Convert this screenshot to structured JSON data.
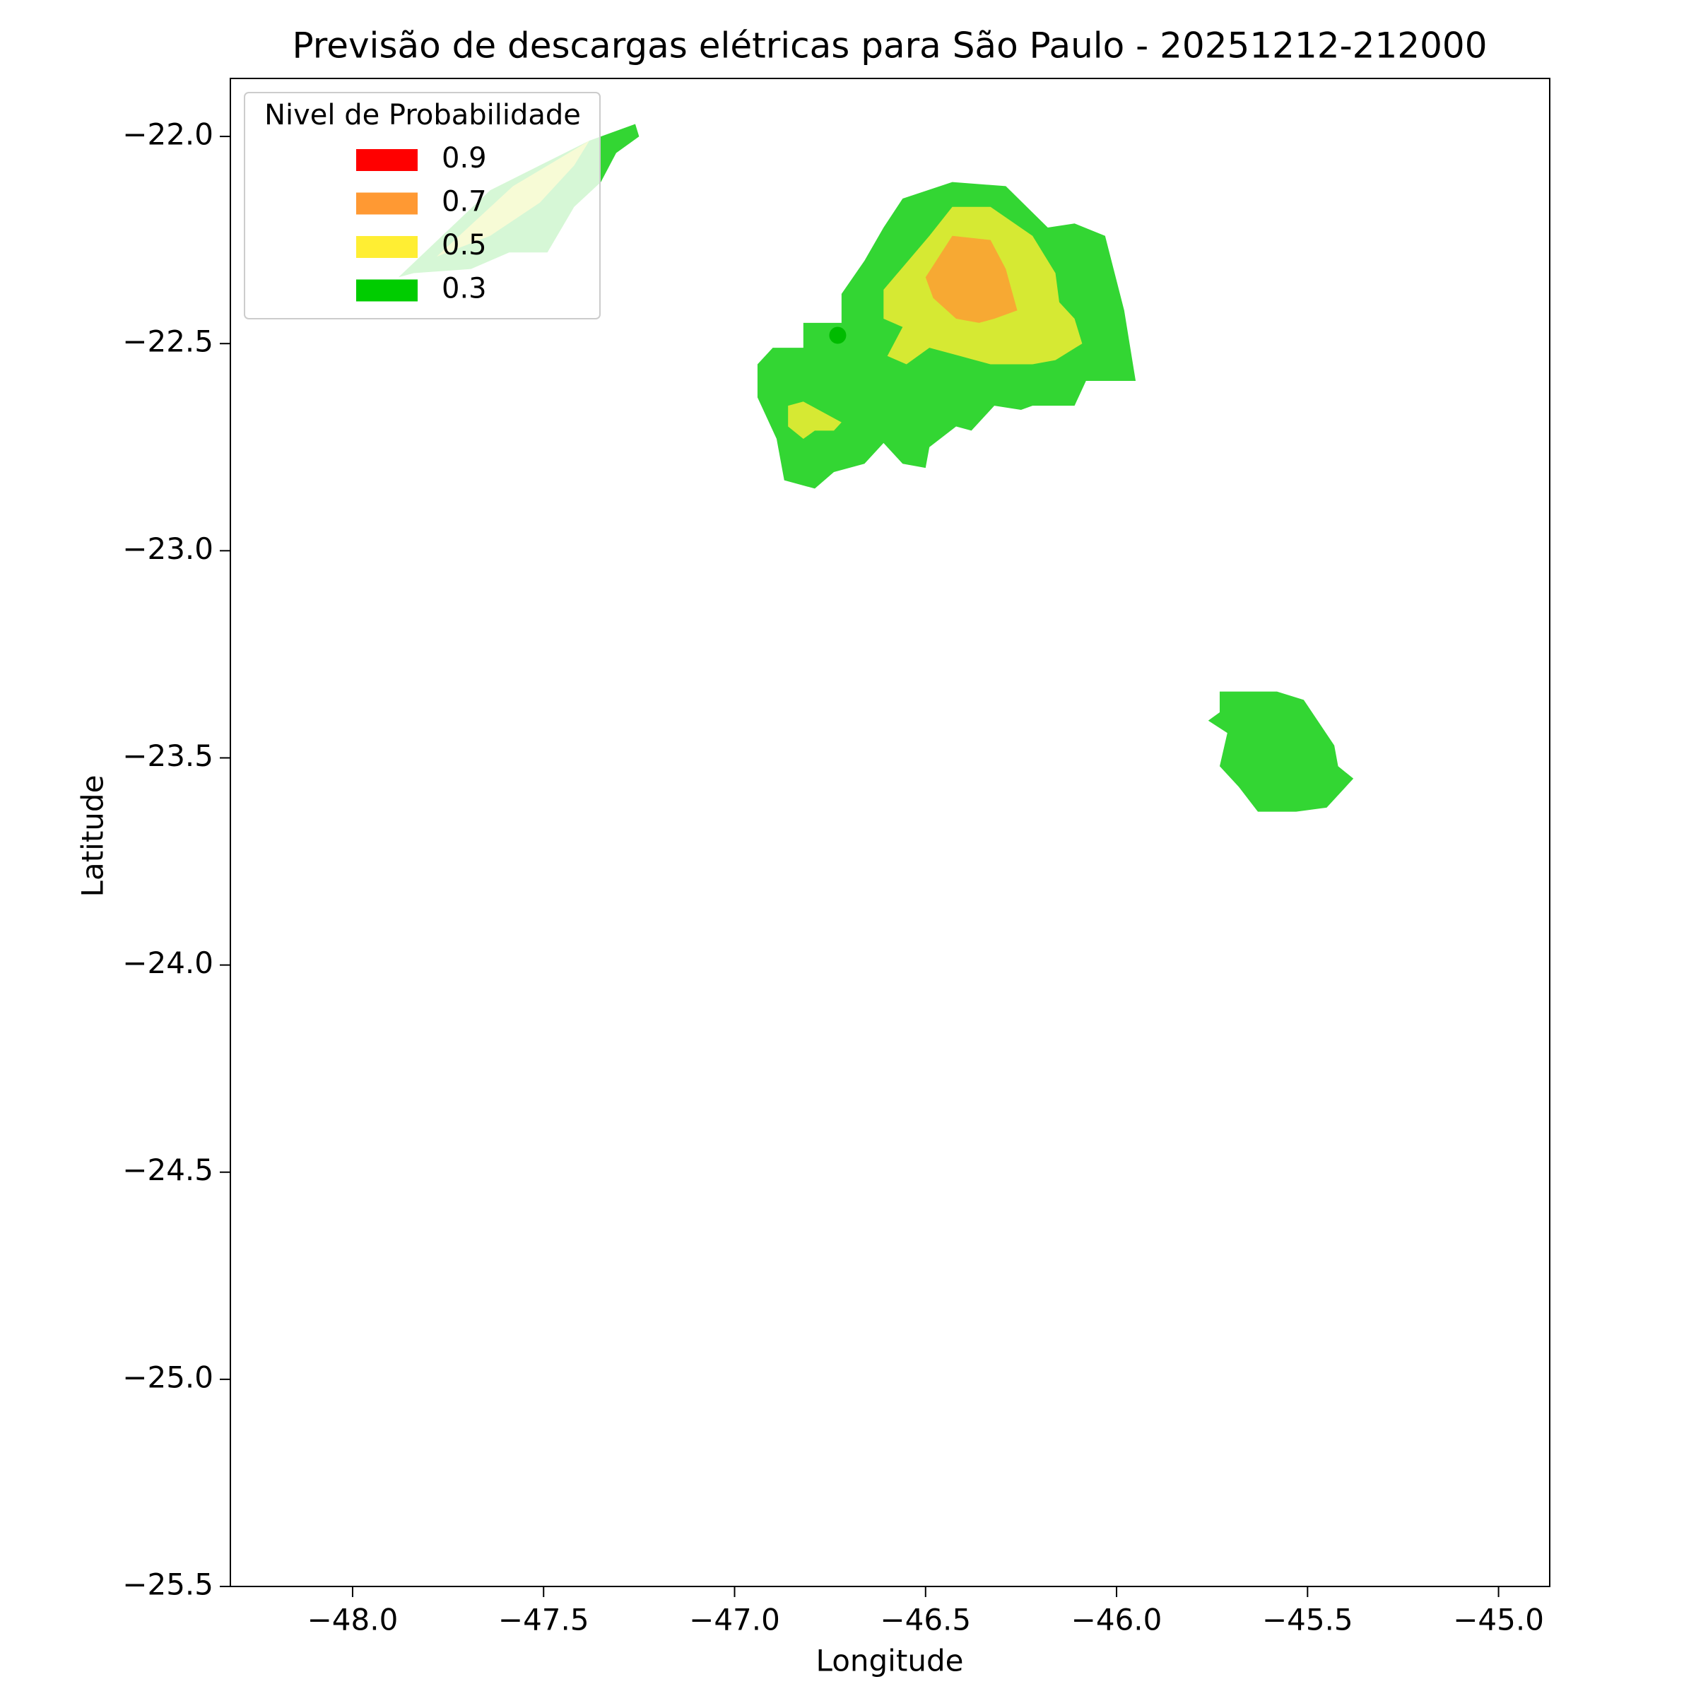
{
  "chart_data": {
    "type": "contour",
    "title": "Previsão de descargas elétricas para São Paulo - 20251212-212000",
    "x_label": "Longitude",
    "y_label": "Latitude",
    "xlim": [
      -48.32,
      -44.866
    ],
    "ylim": [
      -25.5,
      -21.86
    ],
    "xticks": [
      {
        "value": -48,
        "label": "−48.0"
      },
      {
        "value": -47.5,
        "label": "−47.5"
      },
      {
        "value": -47,
        "label": "−47.0"
      },
      {
        "value": -46.5,
        "label": "−46.5"
      },
      {
        "value": -46,
        "label": "−46.0"
      },
      {
        "value": -45.5,
        "label": "−45.5"
      },
      {
        "value": -45,
        "label": "−45.0"
      }
    ],
    "yticks": [
      {
        "value": -22,
        "label": "−22.0"
      },
      {
        "value": -22.5,
        "label": "−22.5"
      },
      {
        "value": -23,
        "label": "−23.0"
      },
      {
        "value": -23.5,
        "label": "−23.5"
      },
      {
        "value": -24,
        "label": "−24.0"
      },
      {
        "value": -24.5,
        "label": "−24.5"
      },
      {
        "value": -25,
        "label": "−25.0"
      },
      {
        "value": -25.5,
        "label": "−25.5"
      }
    ],
    "legend": {
      "title": "Nivel de Probabilidade",
      "position": "upper left",
      "levels": [
        0.9,
        0.7,
        0.5,
        0.3
      ],
      "colors": [
        "#ff0000",
        "#ff9933",
        "#ffee33",
        "#00cc00"
      ]
    },
    "fill_opacity": 0.8,
    "regions": [
      {
        "level": 0.3,
        "lon": [
          -46.94,
          -46.9,
          -46.82,
          -46.82,
          -46.72,
          -46.72,
          -46.66,
          -46.61,
          -46.56,
          -46.43,
          -46.29,
          -46.18,
          -46.11,
          -46.03,
          -45.98,
          -45.95,
          -46.08,
          -46.11,
          -46.22,
          -46.25,
          -46.32,
          -46.38,
          -46.42,
          -46.49,
          -46.5,
          -46.56,
          -46.61,
          -46.66,
          -46.74,
          -46.79,
          -46.87,
          -46.89,
          -46.94
        ],
        "lat": [
          -22.55,
          -22.51,
          -22.51,
          -22.45,
          -22.45,
          -22.38,
          -22.3,
          -22.22,
          -22.15,
          -22.11,
          -22.12,
          -22.22,
          -22.21,
          -22.24,
          -22.42,
          -22.59,
          -22.59,
          -22.65,
          -22.65,
          -22.66,
          -22.65,
          -22.71,
          -22.7,
          -22.75,
          -22.8,
          -22.79,
          -22.74,
          -22.79,
          -22.81,
          -22.85,
          -22.83,
          -22.73,
          -22.63
        ]
      },
      {
        "level": 0.3,
        "lon": [
          -45.73,
          -45.58,
          -45.51,
          -45.43,
          -45.42,
          -45.38,
          -45.45,
          -45.53,
          -45.63,
          -45.68,
          -45.73,
          -45.71,
          -45.76,
          -45.73
        ],
        "lat": [
          -23.34,
          -23.34,
          -23.36,
          -23.47,
          -23.52,
          -23.55,
          -23.62,
          -23.63,
          -23.63,
          -23.57,
          -23.52,
          -23.44,
          -23.41,
          -23.39
        ]
      },
      {
        "level": 0.3,
        "lon": [
          -47.88,
          -47.64,
          -47.38,
          -47.26,
          -47.25,
          -47.31,
          -47.35,
          -47.42,
          -47.49,
          -47.59,
          -47.69,
          -47.84
        ],
        "lat": [
          -22.34,
          -22.13,
          -22.01,
          -21.97,
          -22.0,
          -22.04,
          -22.11,
          -22.17,
          -22.28,
          -22.28,
          -22.32,
          -22.33
        ]
      },
      {
        "level": 0.5,
        "lon": [
          -46.61,
          -46.49,
          -46.43,
          -46.33,
          -46.22,
          -46.16,
          -46.15,
          -46.11,
          -46.09,
          -46.16,
          -46.22,
          -46.33,
          -46.41,
          -46.49,
          -46.55,
          -46.6,
          -46.56,
          -46.61
        ],
        "lat": [
          -22.37,
          -22.24,
          -22.17,
          -22.17,
          -22.24,
          -22.33,
          -22.4,
          -22.44,
          -22.5,
          -22.54,
          -22.55,
          -22.55,
          -22.53,
          -22.51,
          -22.55,
          -22.53,
          -22.46,
          -22.44
        ]
      },
      {
        "level": 0.5,
        "lon": [
          -46.86,
          -46.82,
          -46.72,
          -46.74,
          -46.79,
          -46.82,
          -46.86
        ],
        "lat": [
          -22.65,
          -22.64,
          -22.69,
          -22.71,
          -22.71,
          -22.73,
          -22.7
        ]
      },
      {
        "level": 0.5,
        "lon": [
          -47.78,
          -47.58,
          -47.38,
          -47.42,
          -47.51,
          -47.64
        ],
        "lat": [
          -22.29,
          -22.12,
          -22.01,
          -22.07,
          -22.16,
          -22.24
        ]
      },
      {
        "level": 0.7,
        "lon": [
          -46.5,
          -46.43,
          -46.33,
          -46.29,
          -46.26,
          -46.32,
          -46.36,
          -46.42,
          -46.48
        ],
        "lat": [
          -22.34,
          -22.24,
          -22.25,
          -22.32,
          -22.42,
          -22.44,
          -22.45,
          -22.44,
          -22.39
        ]
      }
    ],
    "points": {
      "lon": [
        -46.73
      ],
      "lat": [
        -22.48
      ],
      "color": "#00bb00"
    }
  }
}
